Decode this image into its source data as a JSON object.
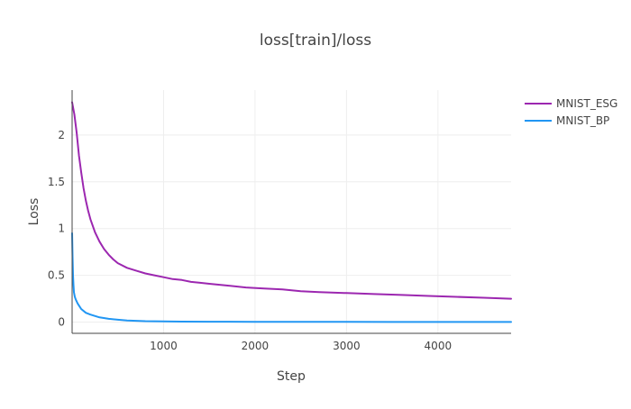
{
  "chart_data": {
    "type": "line",
    "title": "loss[train]/loss",
    "xlabel": "Step",
    "ylabel": "Loss",
    "xlim": [
      0,
      4800
    ],
    "ylim": [
      -0.12,
      2.48
    ],
    "x_ticks": [
      1000,
      2000,
      3000,
      4000
    ],
    "x_tick_labels": [
      "1000",
      "2000",
      "3000",
      "4000"
    ],
    "y_ticks": [
      0,
      0.5,
      1,
      1.5,
      2
    ],
    "y_tick_labels": [
      "0",
      "0.5",
      "1",
      "1.5",
      "2"
    ],
    "grid": true,
    "legend_position": "top-right",
    "series": [
      {
        "name": "MNIST_ESG",
        "color": "#9c27b0",
        "x": [
          0,
          25,
          50,
          75,
          100,
          125,
          150,
          175,
          200,
          250,
          300,
          350,
          400,
          450,
          500,
          600,
          700,
          800,
          900,
          1000,
          1100,
          1200,
          1300,
          1400,
          1500,
          1700,
          1900,
          2100,
          2300,
          2500,
          2700,
          3000,
          3300,
          3600,
          3900,
          4200,
          4500,
          4800
        ],
        "y": [
          2.35,
          2.22,
          2.02,
          1.78,
          1.6,
          1.43,
          1.3,
          1.19,
          1.1,
          0.96,
          0.86,
          0.78,
          0.72,
          0.67,
          0.63,
          0.58,
          0.55,
          0.52,
          0.5,
          0.48,
          0.46,
          0.45,
          0.43,
          0.42,
          0.41,
          0.39,
          0.37,
          0.36,
          0.35,
          0.33,
          0.32,
          0.31,
          0.3,
          0.29,
          0.28,
          0.27,
          0.26,
          0.25
        ]
      },
      {
        "name": "MNIST_BP",
        "color": "#2196f3",
        "x": [
          0,
          5,
          10,
          15,
          20,
          30,
          40,
          60,
          80,
          100,
          150,
          200,
          300,
          400,
          500,
          600,
          800,
          1000,
          1200,
          1500,
          2000,
          2500,
          3000,
          3500,
          4000,
          4500,
          4800
        ],
        "y": [
          0.95,
          0.7,
          0.5,
          0.4,
          0.32,
          0.27,
          0.24,
          0.2,
          0.17,
          0.14,
          0.1,
          0.08,
          0.05,
          0.035,
          0.025,
          0.018,
          0.01,
          0.007,
          0.005,
          0.004,
          0.003,
          0.002,
          0.002,
          0.001,
          0.001,
          0.001,
          0.001
        ]
      }
    ]
  }
}
